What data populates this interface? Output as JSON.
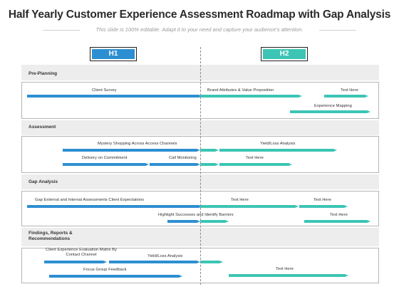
{
  "title": "Half Yearly Customer Experience Assessment Roadmap with Gap Analysis",
  "subtitle": "This slide is 100% editable. Adapt it to your need and capture your audience's attention.",
  "colors": {
    "h1": "#2d8fd1",
    "h2": "#3cc5b4",
    "band": "#ededed"
  },
  "periods": {
    "h1": "H1",
    "h2": "H2"
  },
  "sections": {
    "pre_planning": {
      "label": "Pre-Planning",
      "tasks": [
        "Client Survey",
        "Brand Attributes & Value Proposition",
        "Text Here",
        "Experience Mapping"
      ]
    },
    "assessment": {
      "label": "Assessment",
      "tasks": [
        "Mystery Shopping Across Access Channels",
        "Yield/Loss Analysis",
        "Delivery on Commitment",
        "Call Monitoring",
        "Text Here"
      ]
    },
    "gap_analysis": {
      "label": "Gap Analysis",
      "tasks": [
        "Gap External and Internal Assessments Client Expectations",
        "Text Here",
        "Text Here",
        "Highlight Successes and Identify Barriers",
        "Text Here"
      ]
    },
    "findings": {
      "label": "Findings, Reports & Recommendations",
      "tasks": [
        "Client Experience Evaluation Matrix By Contact Channel",
        "Yield/Loss Analysis",
        "Focus Group Feedback",
        "Text Here"
      ]
    }
  }
}
